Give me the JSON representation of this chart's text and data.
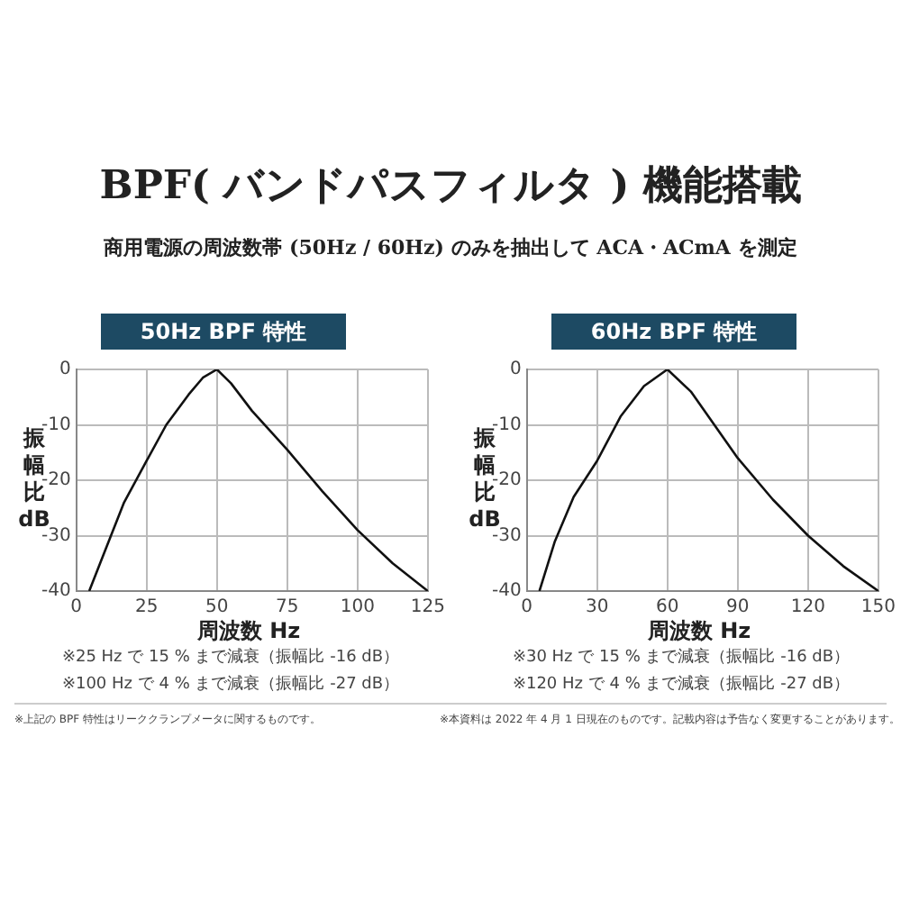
{
  "chart_data": [
    {
      "type": "line",
      "title": "50Hz BPF 特性",
      "xlabel": "周波数 Hz",
      "ylabel": "振幅比 dB",
      "annotations": [
        "BPF( バンドパスフィルタ ) 機能搭載",
        "商用電源の周波数帯 (50Hz / 60Hz) のみを抽出して ACA・ACmA を測定",
        "※25 Hz で 15 % まで減衰（振幅比 -16 dB）",
        "※100 Hz で 4 % まで減衰（振幅比 -27 dB）",
        "※上記の BPF 特性はリーククランプメータに関するものです。"
      ],
      "series": [
        {
          "color": "#111111",
          "x": [
            4.6,
            10,
            17,
            25,
            32,
            40,
            45,
            50,
            55,
            62.5,
            75,
            87.5,
            100,
            112.5,
            125
          ],
          "values": [
            -40,
            -33,
            -24,
            -16.5,
            -10,
            -4.5,
            -1.5,
            0,
            -2.5,
            -7.5,
            -14.5,
            -22,
            -29,
            -35,
            -40
          ]
        }
      ],
      "xlim": [
        0,
        125
      ],
      "xticks": [
        0,
        25,
        50,
        75,
        100,
        125
      ],
      "ylim": [
        -40,
        0
      ],
      "yticks": [
        -40,
        -30,
        -20,
        -10,
        0
      ],
      "grid": true,
      "legend": false,
      "marker": "none",
      "line_style": "solid"
    },
    {
      "type": "line",
      "title": "60Hz BPF 特性",
      "xlabel": "周波数 Hz",
      "ylabel": "振幅比 dB",
      "annotations": [
        "※30 Hz で 15 % まで減衰（振幅比 -16 dB）",
        "※120 Hz で 4 % まで減衰（振幅比 -27 dB）",
        "※本資料は 2022 年 4 月 1 日現在のものです。記載内容は予告なく変更することがあります。"
      ],
      "series": [
        {
          "color": "#111111",
          "x": [
            5.4,
            12,
            20,
            30,
            40,
            50,
            60,
            70,
            80,
            90,
            105,
            120,
            135,
            150
          ],
          "values": [
            -40,
            -31,
            -23,
            -16.5,
            -8.5,
            -3,
            0,
            -4,
            -10,
            -16,
            -23.5,
            -30,
            -35.5,
            -40
          ]
        }
      ],
      "xlim": [
        0,
        150
      ],
      "xticks": [
        0,
        30,
        60,
        90,
        120,
        150
      ],
      "ylim": [
        -40,
        0
      ],
      "yticks": [
        -40,
        -30,
        -20,
        -10,
        0
      ],
      "grid": true,
      "legend": false,
      "marker": "none",
      "line_style": "solid"
    }
  ]
}
